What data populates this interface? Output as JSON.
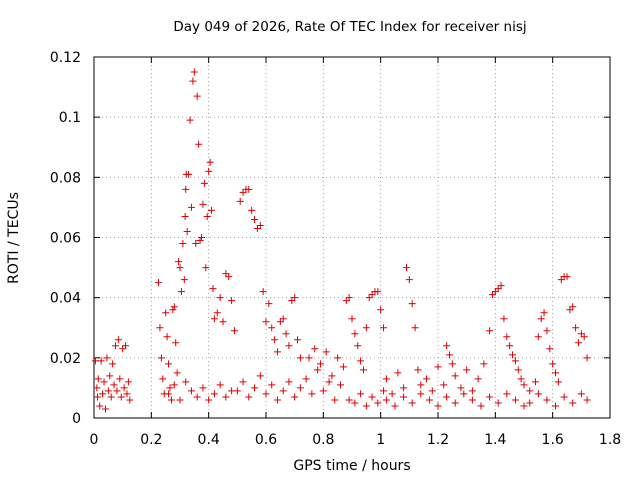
{
  "chart_data": {
    "type": "scatter",
    "title": "Day 049 of 2026, Rate Of TEC Index for receiver nisj",
    "xlabel": "GPS time / hours",
    "ylabel": "ROTI / TECUs",
    "xlim": [
      0,
      1.8
    ],
    "ylim": [
      0,
      0.12
    ],
    "x_ticks": [
      0,
      0.2,
      0.4,
      0.6,
      0.8,
      1,
      1.2,
      1.4,
      1.6,
      1.8
    ],
    "x_tick_labels": [
      "0",
      "0.2",
      "0.4",
      "0.6",
      "0.8",
      "1",
      "1.2",
      "1.4",
      "1.6",
      "1.8"
    ],
    "y_ticks": [
      0,
      0.02,
      0.04,
      0.06,
      0.08,
      0.1,
      0.12
    ],
    "y_tick_labels": [
      "0",
      "0.02",
      "0.04",
      "0.06",
      "0.08",
      "0.1",
      "0.12"
    ],
    "grid": true,
    "marker": "+",
    "marker_color": "#e00000",
    "series": [
      {
        "name": "ROTI",
        "points": [
          [
            0.005,
            0.019
          ],
          [
            0.01,
            0.01
          ],
          [
            0.012,
            0.007
          ],
          [
            0.015,
            0.013
          ],
          [
            0.02,
            0.004
          ],
          [
            0.025,
            0.019
          ],
          [
            0.03,
            0.008
          ],
          [
            0.035,
            0.012
          ],
          [
            0.04,
            0.003
          ],
          [
            0.045,
            0.02
          ],
          [
            0.05,
            0.009
          ],
          [
            0.055,
            0.014
          ],
          [
            0.06,
            0.007
          ],
          [
            0.065,
            0.018
          ],
          [
            0.07,
            0.011
          ],
          [
            0.075,
            0.024
          ],
          [
            0.08,
            0.009
          ],
          [
            0.085,
            0.026
          ],
          [
            0.09,
            0.013
          ],
          [
            0.095,
            0.007
          ],
          [
            0.1,
            0.023
          ],
          [
            0.105,
            0.01
          ],
          [
            0.11,
            0.024
          ],
          [
            0.115,
            0.008
          ],
          [
            0.12,
            0.012
          ],
          [
            0.125,
            0.006
          ],
          [
            0.225,
            0.045
          ],
          [
            0.23,
            0.03
          ],
          [
            0.235,
            0.02
          ],
          [
            0.24,
            0.013
          ],
          [
            0.245,
            0.008
          ],
          [
            0.25,
            0.035
          ],
          [
            0.255,
            0.027
          ],
          [
            0.26,
            0.018
          ],
          [
            0.265,
            0.01
          ],
          [
            0.27,
            0.006
          ],
          [
            0.275,
            0.036
          ],
          [
            0.28,
            0.037
          ],
          [
            0.285,
            0.025
          ],
          [
            0.29,
            0.015
          ],
          [
            0.295,
            0.052
          ],
          [
            0.3,
            0.05
          ],
          [
            0.305,
            0.042
          ],
          [
            0.31,
            0.058
          ],
          [
            0.315,
            0.046
          ],
          [
            0.318,
            0.067
          ],
          [
            0.32,
            0.076
          ],
          [
            0.322,
            0.081
          ],
          [
            0.325,
            0.062
          ],
          [
            0.33,
            0.081
          ],
          [
            0.335,
            0.099
          ],
          [
            0.34,
            0.07
          ],
          [
            0.345,
            0.112
          ],
          [
            0.35,
            0.115
          ],
          [
            0.355,
            0.058
          ],
          [
            0.36,
            0.107
          ],
          [
            0.365,
            0.091
          ],
          [
            0.37,
            0.059
          ],
          [
            0.375,
            0.06
          ],
          [
            0.38,
            0.071
          ],
          [
            0.385,
            0.078
          ],
          [
            0.39,
            0.05
          ],
          [
            0.395,
            0.067
          ],
          [
            0.4,
            0.082
          ],
          [
            0.405,
            0.085
          ],
          [
            0.41,
            0.069
          ],
          [
            0.415,
            0.043
          ],
          [
            0.42,
            0.033
          ],
          [
            0.43,
            0.035
          ],
          [
            0.44,
            0.04
          ],
          [
            0.45,
            0.032
          ],
          [
            0.46,
            0.048
          ],
          [
            0.47,
            0.047
          ],
          [
            0.48,
            0.039
          ],
          [
            0.49,
            0.029
          ],
          [
            0.26,
            0.008
          ],
          [
            0.28,
            0.011
          ],
          [
            0.3,
            0.006
          ],
          [
            0.32,
            0.012
          ],
          [
            0.34,
            0.009
          ],
          [
            0.36,
            0.007
          ],
          [
            0.38,
            0.01
          ],
          [
            0.4,
            0.006
          ],
          [
            0.42,
            0.008
          ],
          [
            0.44,
            0.011
          ],
          [
            0.46,
            0.007
          ],
          [
            0.48,
            0.009
          ],
          [
            0.51,
            0.072
          ],
          [
            0.52,
            0.075
          ],
          [
            0.53,
            0.076
          ],
          [
            0.54,
            0.076
          ],
          [
            0.55,
            0.069
          ],
          [
            0.56,
            0.066
          ],
          [
            0.57,
            0.063
          ],
          [
            0.58,
            0.064
          ],
          [
            0.59,
            0.042
          ],
          [
            0.6,
            0.032
          ],
          [
            0.61,
            0.038
          ],
          [
            0.62,
            0.03
          ],
          [
            0.63,
            0.026
          ],
          [
            0.64,
            0.022
          ],
          [
            0.65,
            0.032
          ],
          [
            0.66,
            0.033
          ],
          [
            0.67,
            0.028
          ],
          [
            0.68,
            0.024
          ],
          [
            0.69,
            0.039
          ],
          [
            0.7,
            0.04
          ],
          [
            0.71,
            0.026
          ],
          [
            0.72,
            0.02
          ],
          [
            0.5,
            0.009
          ],
          [
            0.52,
            0.012
          ],
          [
            0.54,
            0.007
          ],
          [
            0.56,
            0.01
          ],
          [
            0.58,
            0.014
          ],
          [
            0.6,
            0.008
          ],
          [
            0.62,
            0.011
          ],
          [
            0.64,
            0.006
          ],
          [
            0.66,
            0.009
          ],
          [
            0.68,
            0.012
          ],
          [
            0.7,
            0.007
          ],
          [
            0.72,
            0.01
          ],
          [
            0.74,
            0.013
          ],
          [
            0.76,
            0.008
          ],
          [
            0.78,
            0.016
          ],
          [
            0.8,
            0.009
          ],
          [
            0.82,
            0.012
          ],
          [
            0.84,
            0.006
          ],
          [
            0.86,
            0.011
          ],
          [
            0.88,
            0.039
          ],
          [
            0.89,
            0.04
          ],
          [
            0.9,
            0.033
          ],
          [
            0.91,
            0.028
          ],
          [
            0.92,
            0.024
          ],
          [
            0.93,
            0.019
          ],
          [
            0.94,
            0.016
          ],
          [
            0.95,
            0.03
          ],
          [
            0.96,
            0.04
          ],
          [
            0.97,
            0.041
          ],
          [
            0.98,
            0.042
          ],
          [
            0.99,
            0.042
          ],
          [
            1.0,
            0.036
          ],
          [
            1.01,
            0.03
          ],
          [
            0.75,
            0.02
          ],
          [
            0.77,
            0.023
          ],
          [
            0.79,
            0.018
          ],
          [
            0.81,
            0.022
          ],
          [
            0.83,
            0.014
          ],
          [
            0.85,
            0.02
          ],
          [
            0.87,
            0.017
          ],
          [
            0.89,
            0.006
          ],
          [
            0.91,
            0.005
          ],
          [
            0.93,
            0.008
          ],
          [
            0.95,
            0.004
          ],
          [
            0.97,
            0.007
          ],
          [
            0.99,
            0.005
          ],
          [
            1.01,
            0.009
          ],
          [
            1.02,
            0.013
          ],
          [
            1.04,
            0.008
          ],
          [
            1.06,
            0.015
          ],
          [
            1.08,
            0.01
          ],
          [
            1.09,
            0.05
          ],
          [
            1.1,
            0.046
          ],
          [
            1.11,
            0.038
          ],
          [
            1.12,
            0.03
          ],
          [
            1.13,
            0.016
          ],
          [
            1.14,
            0.011
          ],
          [
            1.16,
            0.013
          ],
          [
            1.18,
            0.009
          ],
          [
            1.2,
            0.017
          ],
          [
            1.22,
            0.011
          ],
          [
            1.23,
            0.024
          ],
          [
            1.24,
            0.021
          ],
          [
            1.25,
            0.018
          ],
          [
            1.26,
            0.014
          ],
          [
            1.28,
            0.01
          ],
          [
            1.3,
            0.016
          ],
          [
            1.32,
            0.009
          ],
          [
            1.34,
            0.013
          ],
          [
            1.36,
            0.018
          ],
          [
            1.38,
            0.029
          ],
          [
            1.39,
            0.041
          ],
          [
            1.4,
            0.042
          ],
          [
            1.41,
            0.043
          ],
          [
            1.42,
            0.044
          ],
          [
            1.43,
            0.033
          ],
          [
            1.44,
            0.027
          ],
          [
            1.45,
            0.024
          ],
          [
            1.46,
            0.021
          ],
          [
            1.47,
            0.019
          ],
          [
            1.48,
            0.016
          ],
          [
            1.49,
            0.013
          ],
          [
            1.5,
            0.011
          ],
          [
            1.02,
            0.006
          ],
          [
            1.05,
            0.004
          ],
          [
            1.08,
            0.007
          ],
          [
            1.11,
            0.005
          ],
          [
            1.14,
            0.008
          ],
          [
            1.17,
            0.006
          ],
          [
            1.2,
            0.004
          ],
          [
            1.23,
            0.007
          ],
          [
            1.26,
            0.005
          ],
          [
            1.29,
            0.008
          ],
          [
            1.32,
            0.006
          ],
          [
            1.35,
            0.004
          ],
          [
            1.38,
            0.007
          ],
          [
            1.41,
            0.005
          ],
          [
            1.44,
            0.008
          ],
          [
            1.47,
            0.006
          ],
          [
            1.5,
            0.004
          ],
          [
            1.52,
            0.009
          ],
          [
            1.54,
            0.012
          ],
          [
            1.55,
            0.027
          ],
          [
            1.56,
            0.033
          ],
          [
            1.57,
            0.035
          ],
          [
            1.58,
            0.029
          ],
          [
            1.59,
            0.023
          ],
          [
            1.6,
            0.018
          ],
          [
            1.61,
            0.015
          ],
          [
            1.62,
            0.012
          ],
          [
            1.63,
            0.046
          ],
          [
            1.64,
            0.047
          ],
          [
            1.65,
            0.047
          ],
          [
            1.66,
            0.036
          ],
          [
            1.67,
            0.037
          ],
          [
            1.68,
            0.03
          ],
          [
            1.69,
            0.025
          ],
          [
            1.7,
            0.028
          ],
          [
            1.71,
            0.027
          ],
          [
            1.72,
            0.02
          ],
          [
            1.52,
            0.005
          ],
          [
            1.55,
            0.008
          ],
          [
            1.58,
            0.006
          ],
          [
            1.61,
            0.004
          ],
          [
            1.64,
            0.007
          ],
          [
            1.67,
            0.005
          ],
          [
            1.7,
            0.008
          ],
          [
            1.72,
            0.006
          ]
        ]
      }
    ]
  }
}
